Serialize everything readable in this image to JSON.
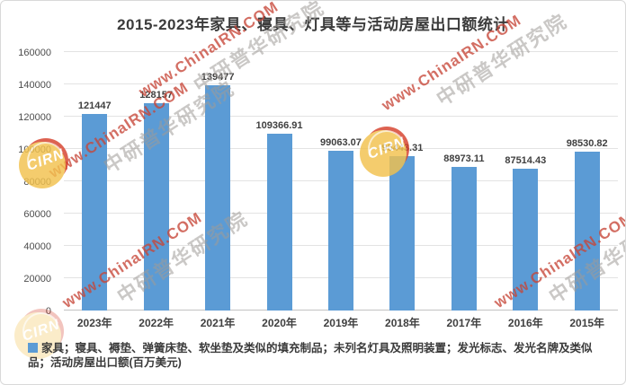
{
  "chart_data": {
    "type": "bar",
    "title": "2015-2023年家具、寝具、灯具等与活动房屋出口额统计",
    "categories": [
      "2023年",
      "2022年",
      "2021年",
      "2020年",
      "2019年",
      "2018年",
      "2017年",
      "2016年",
      "2015年"
    ],
    "values": [
      121447,
      128157,
      139477,
      109366.91,
      99063.07,
      95443.31,
      88973.11,
      87514.43,
      98530.82
    ],
    "value_labels": [
      "121447",
      "128157",
      "139477",
      "109366.91",
      "99063.07",
      "95443.31",
      "88973.11",
      "87514.43",
      "98530.82"
    ],
    "ylim": [
      0,
      160000
    ],
    "ytick_interval": 20000,
    "ytick_labels": [
      "0",
      "20000",
      "40000",
      "60000",
      "80000",
      "100000",
      "120000",
      "140000",
      "160000"
    ],
    "grid": true,
    "legend_position": "bottom",
    "legend_label": "家具；寝具、褥垫、弹簧床垫、软坐垫及类似的填充制品；未列名灯具及照明装置；发光标志、发光名牌及类似品；活动房屋出口额(百万美元)",
    "bar_color": "#5b9bd5"
  },
  "watermark": {
    "url_text": "www.ChinaIRN.COM",
    "brand_text": "中研普华研究院",
    "logo_text": "CIRN",
    "red_color": "#c64537",
    "gray_color": "#9e9b97",
    "logo_red": "#d6402b",
    "logo_yellow": "#f2c24e"
  }
}
